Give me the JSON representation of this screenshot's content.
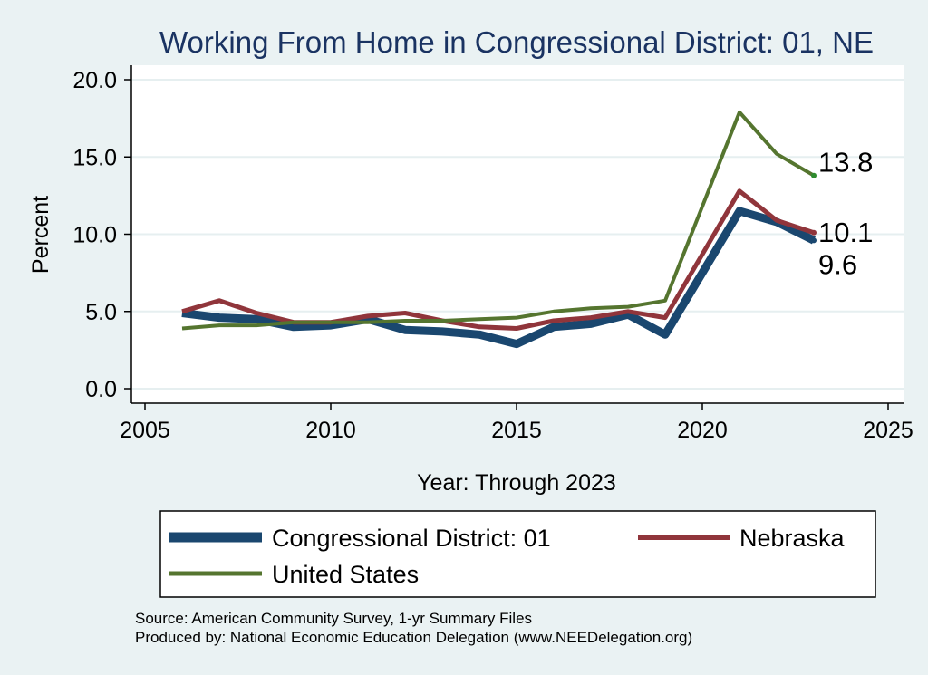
{
  "chart_data": {
    "type": "line",
    "title": "Working From Home in Congressional District: 01, NE",
    "xlabel": "Year: Through 2023",
    "ylabel": "Percent",
    "xlim": [
      2005,
      2025
    ],
    "ylim": [
      0,
      20
    ],
    "xticks": [
      2005,
      2010,
      2015,
      2020,
      2025
    ],
    "yticks": [
      "0.0",
      "5.0",
      "10.0",
      "15.0",
      "20.0"
    ],
    "grid": true,
    "legend_position": "bottom",
    "series": [
      {
        "name": "Congressional District: 01",
        "color": "#1a476f",
        "x": [
          2006,
          2007,
          2008,
          2009,
          2010,
          2011,
          2012,
          2013,
          2014,
          2015,
          2016,
          2017,
          2018,
          2019,
          2021,
          2022,
          2023
        ],
        "values": [
          4.9,
          4.6,
          4.5,
          4.0,
          4.1,
          4.5,
          3.8,
          3.7,
          3.5,
          2.9,
          4.0,
          4.2,
          4.8,
          3.5,
          11.5,
          10.8,
          9.6
        ],
        "end_label": "9.6"
      },
      {
        "name": "Nebraska",
        "color": "#90353b",
        "x": [
          2006,
          2007,
          2008,
          2009,
          2010,
          2011,
          2012,
          2013,
          2014,
          2015,
          2016,
          2017,
          2018,
          2019,
          2021,
          2022,
          2023
        ],
        "values": [
          5.0,
          5.7,
          4.9,
          4.3,
          4.3,
          4.7,
          4.9,
          4.4,
          4.0,
          3.9,
          4.4,
          4.6,
          5.0,
          4.6,
          12.8,
          10.9,
          10.1
        ],
        "end_label": "10.1"
      },
      {
        "name": "United States",
        "color": "#55752f",
        "x": [
          2006,
          2007,
          2008,
          2009,
          2010,
          2011,
          2012,
          2013,
          2014,
          2015,
          2016,
          2017,
          2018,
          2019,
          2021,
          2022,
          2023
        ],
        "values": [
          3.9,
          4.1,
          4.1,
          4.3,
          4.3,
          4.3,
          4.4,
          4.4,
          4.5,
          4.6,
          5.0,
          5.2,
          5.3,
          5.7,
          17.9,
          15.2,
          13.8
        ],
        "end_label": "13.8"
      }
    ],
    "notes": [
      "Source: American Community Survey, 1-yr Summary Files",
      "Produced by: National Economic Education Delegation (www.NEEDelegation.org)"
    ]
  }
}
